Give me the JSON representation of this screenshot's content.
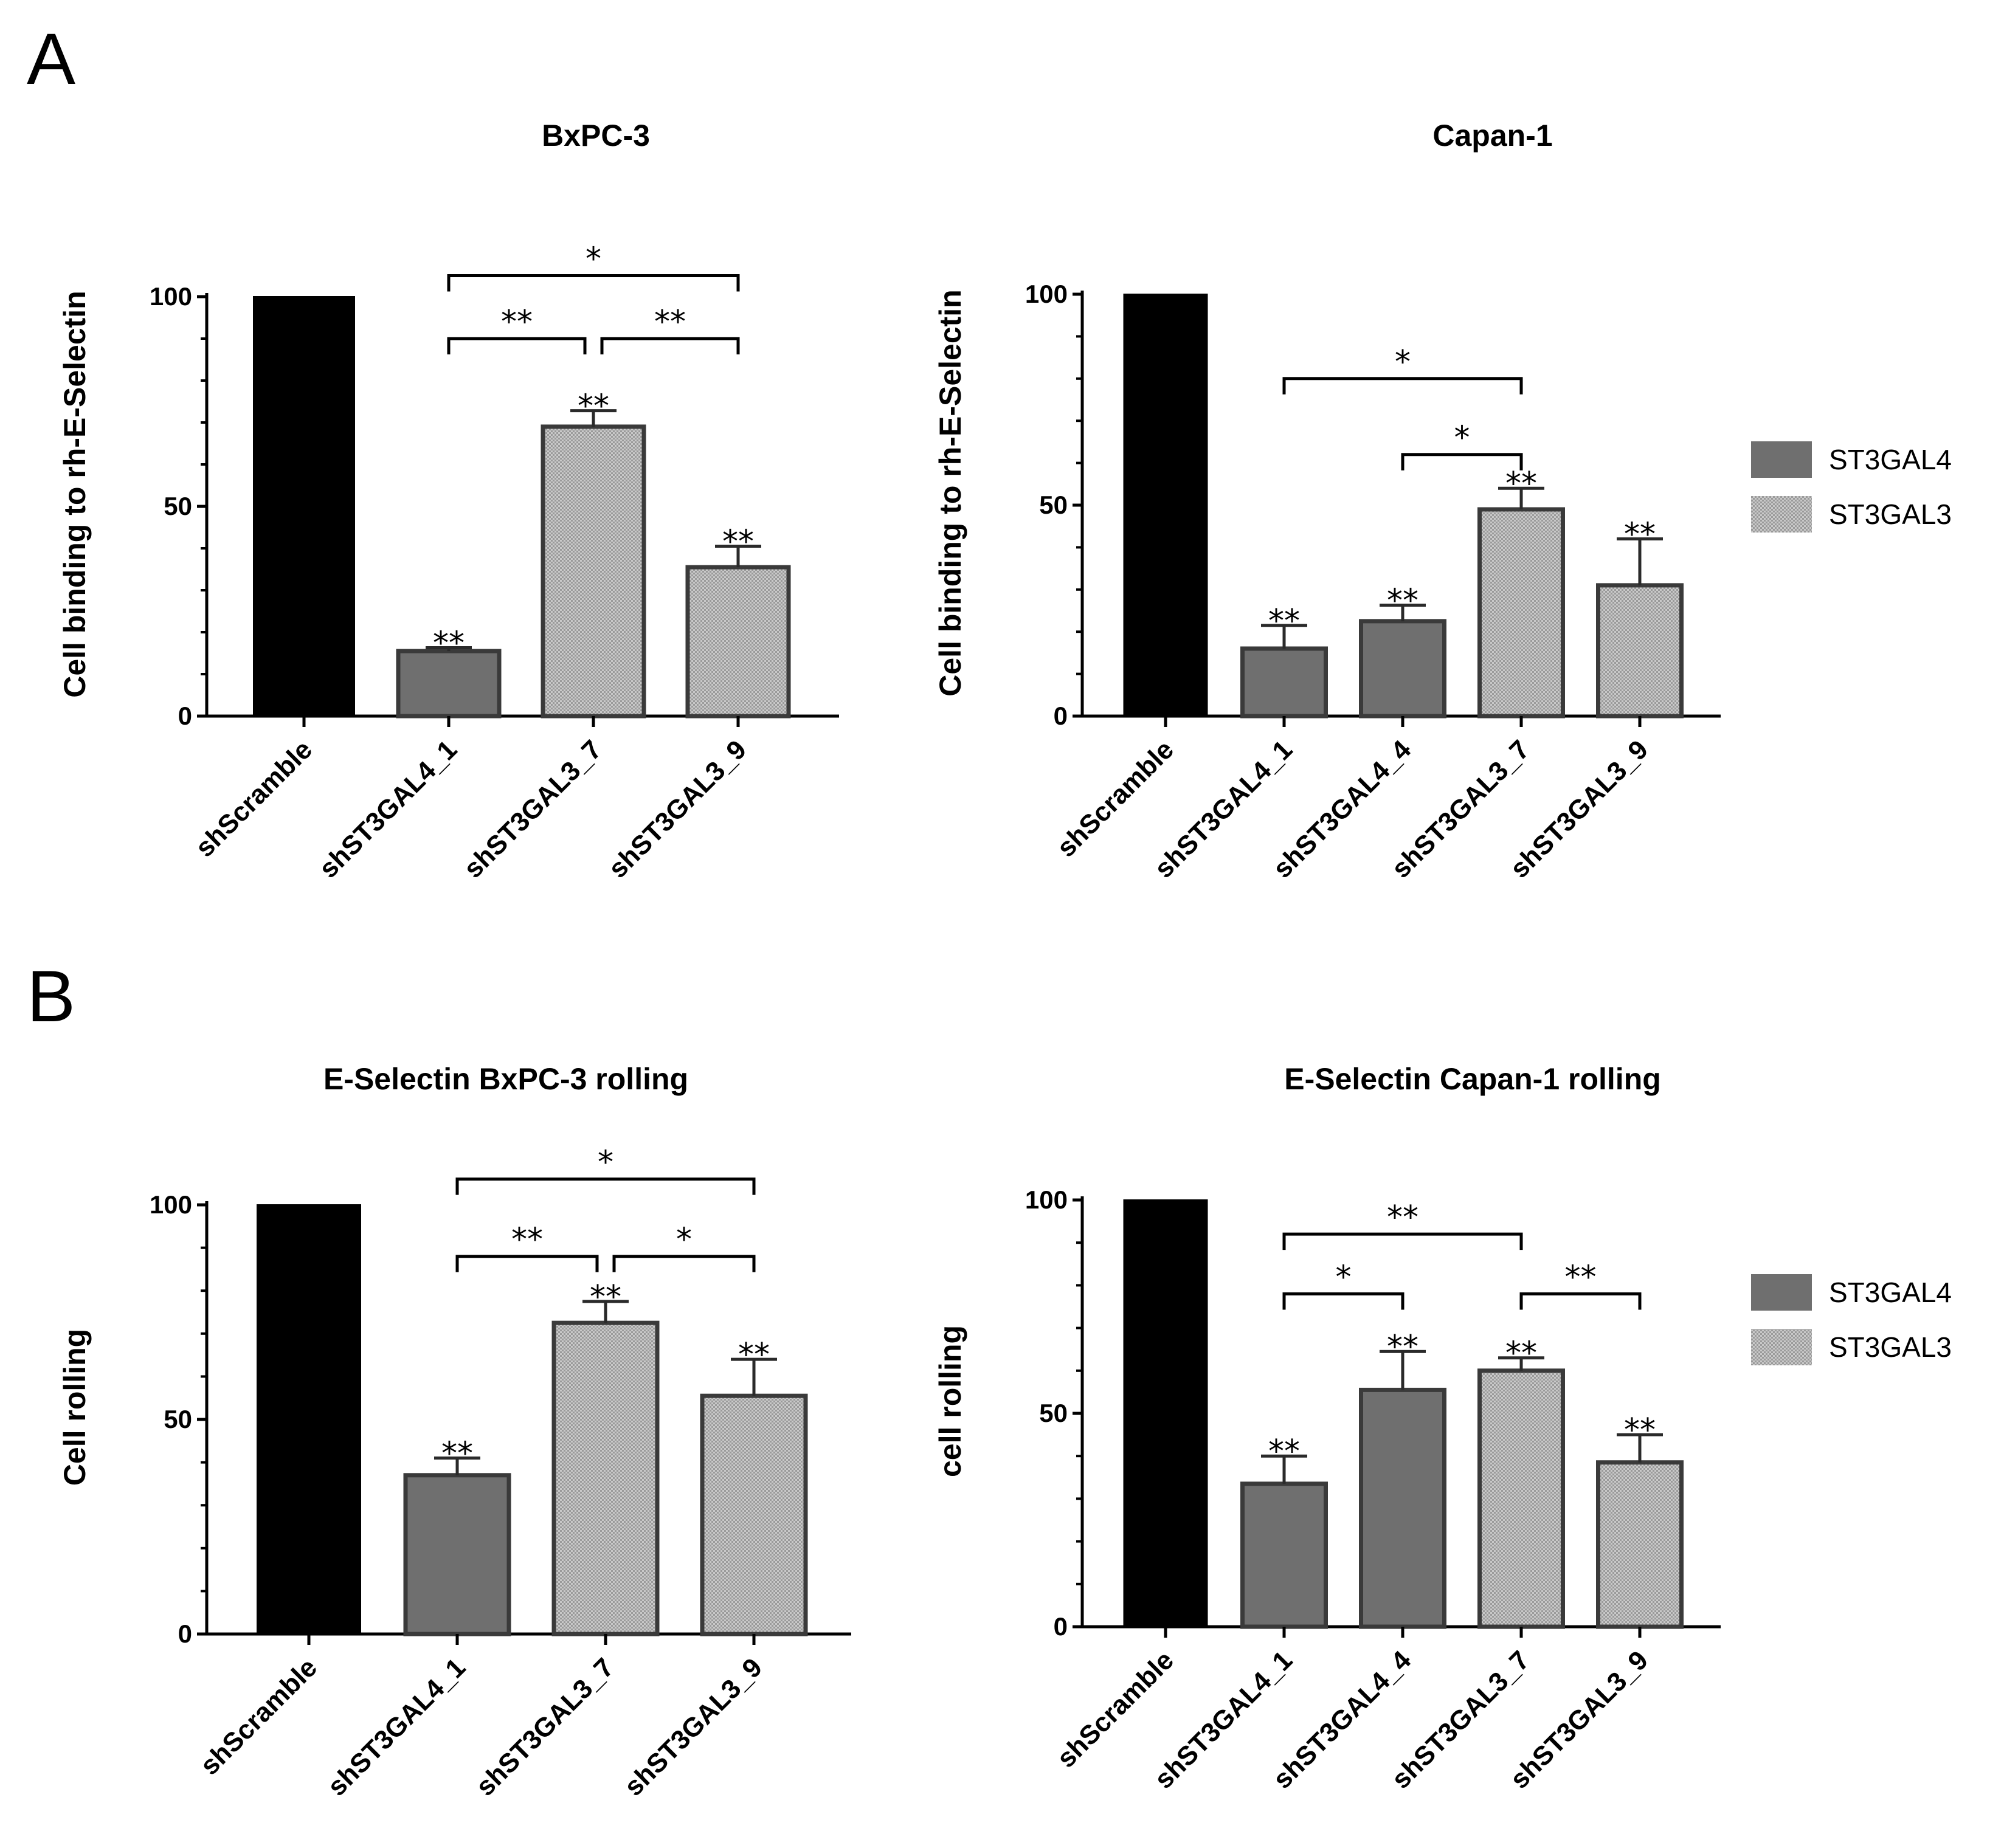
{
  "figure": {
    "panel_labels": [
      "A",
      "B"
    ]
  },
  "colors": {
    "scramble": "#000000",
    "st3gal4": "#6f6f6f",
    "st3gal3": "#bdbdbd",
    "axis": "#000000"
  },
  "legend": {
    "items": [
      {
        "label": "ST3GAL4",
        "color": "#6f6f6f",
        "pattern": "solid"
      },
      {
        "label": "ST3GAL3",
        "color": "#bdbdbd",
        "pattern": "dotted"
      }
    ]
  },
  "chart_data": [
    {
      "id": "A-left",
      "type": "bar",
      "title": "BxPC-3",
      "ylabel": "Cell binding to rh-E-Selectin",
      "xlabel": "",
      "ylim": [
        0,
        100
      ],
      "yticks": [
        0,
        50,
        100
      ],
      "categories": [
        "shScramble",
        "shST3GAL4_1",
        "shST3GAL3_7",
        "shST3GAL3_9"
      ],
      "groups": [
        "control",
        "ST3GAL4",
        "ST3GAL3",
        "ST3GAL3"
      ],
      "values": [
        100,
        15.5,
        69,
        35.5
      ],
      "errors": [
        0,
        0.8,
        3.8,
        5
      ],
      "bar_labels": [
        "",
        "**",
        "**",
        "**"
      ],
      "brackets": [
        {
          "from": 1,
          "to": 2,
          "label": "**",
          "y": 90
        },
        {
          "from": 2,
          "to": 3,
          "label": "**",
          "y": 90
        },
        {
          "from": 1,
          "to": 3,
          "label": "*",
          "y": 105
        }
      ]
    },
    {
      "id": "A-right",
      "type": "bar",
      "title": "Capan-1",
      "ylabel": "Cell binding to rh-E-Selectin",
      "xlabel": "",
      "ylim": [
        0,
        100
      ],
      "yticks": [
        0,
        50,
        100
      ],
      "categories": [
        "shScramble",
        "shST3GAL4_1",
        "shST3GAL4_4",
        "shST3GAL3_7",
        "shST3GAL3_9"
      ],
      "groups": [
        "control",
        "ST3GAL4",
        "ST3GAL4",
        "ST3GAL3",
        "ST3GAL3"
      ],
      "values": [
        100,
        16,
        22.5,
        49,
        31
      ],
      "errors": [
        0,
        5.5,
        3.8,
        5,
        11
      ],
      "bar_labels": [
        "",
        "**",
        "**",
        "**",
        "**"
      ],
      "brackets": [
        {
          "from": 2,
          "to": 3,
          "label": "*",
          "y": 62
        },
        {
          "from": 1,
          "to": 3,
          "label": "*",
          "y": 80
        }
      ]
    },
    {
      "id": "B-left",
      "type": "bar",
      "title": "E-Selectin BxPC-3 rolling",
      "ylabel": "Cell rolling",
      "xlabel": "",
      "ylim": [
        0,
        100
      ],
      "yticks": [
        0,
        50,
        100
      ],
      "categories": [
        "shScramble",
        "shST3GAL4_1",
        "shST3GAL3_7",
        "shST3GAL3_9"
      ],
      "groups": [
        "control",
        "ST3GAL4",
        "ST3GAL3",
        "ST3GAL3"
      ],
      "values": [
        100,
        37,
        72.5,
        55.5
      ],
      "errors": [
        0,
        4,
        5,
        8.5
      ],
      "bar_labels": [
        "",
        "**",
        "**",
        "**"
      ],
      "brackets": [
        {
          "from": 1,
          "to": 2,
          "label": "**",
          "y": 88
        },
        {
          "from": 2,
          "to": 3,
          "label": "*",
          "y": 88
        },
        {
          "from": 1,
          "to": 3,
          "label": "*",
          "y": 106
        }
      ]
    },
    {
      "id": "B-right",
      "type": "bar",
      "title": "E-Selectin Capan-1 rolling",
      "ylabel": "cell rolling",
      "xlabel": "",
      "ylim": [
        0,
        100
      ],
      "yticks": [
        0,
        50,
        100
      ],
      "categories": [
        "shScramble",
        "shST3GAL4_1",
        "shST3GAL4_4",
        "shST3GAL3_7",
        "shST3GAL3_9"
      ],
      "groups": [
        "control",
        "ST3GAL4",
        "ST3GAL4",
        "ST3GAL3",
        "ST3GAL3"
      ],
      "values": [
        100,
        33.5,
        55.5,
        60,
        38.5
      ],
      "errors": [
        0,
        6.5,
        9,
        3,
        6.5
      ],
      "bar_labels": [
        "",
        "**",
        "**",
        "**",
        "**"
      ],
      "brackets": [
        {
          "from": 1,
          "to": 2,
          "label": "*",
          "y": 78
        },
        {
          "from": 3,
          "to": 4,
          "label": "**",
          "y": 78
        },
        {
          "from": 1,
          "to": 3,
          "label": "**",
          "y": 92
        }
      ]
    }
  ]
}
